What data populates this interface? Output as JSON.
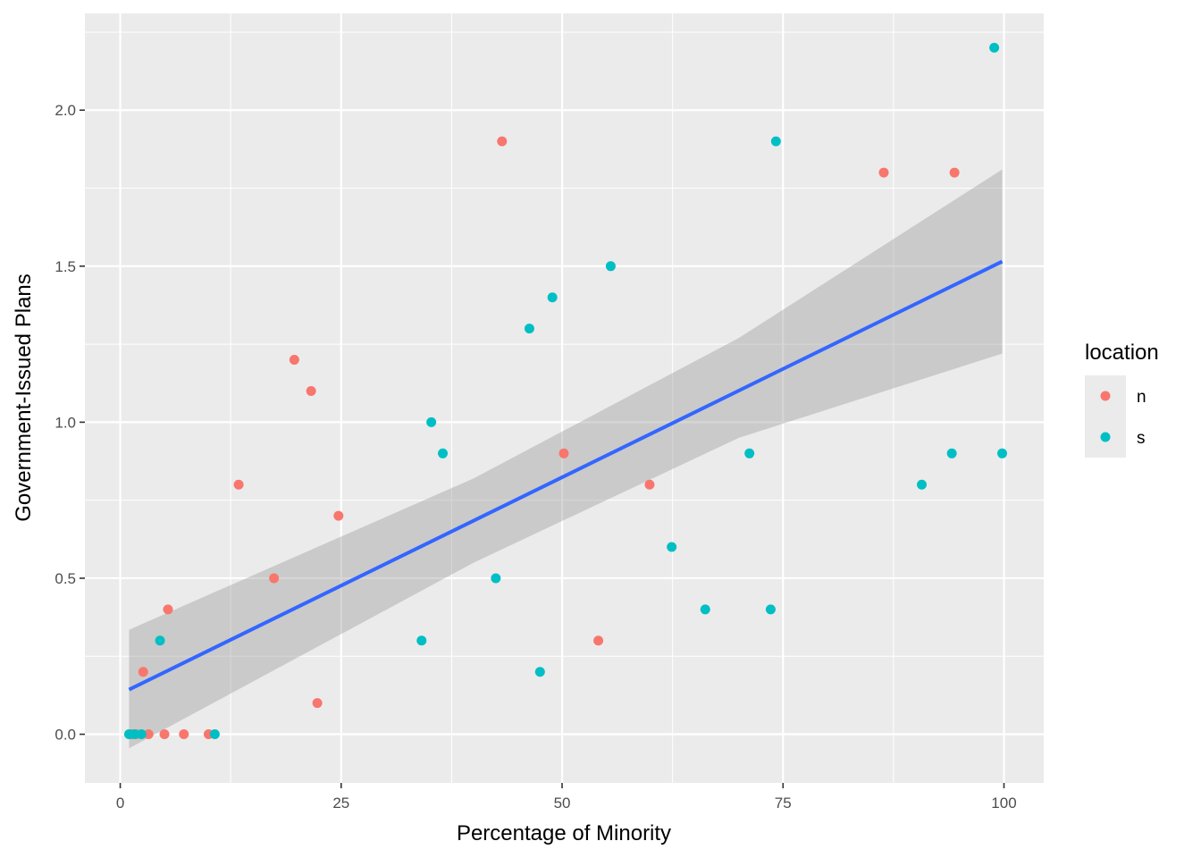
{
  "chart_data": {
    "type": "scatter",
    "xlabel": "Percentage of Minority",
    "ylabel": "Government-Issued Plans",
    "xlim": [
      -4,
      104.5
    ],
    "ylim": [
      -0.156,
      2.31
    ],
    "x_ticks": [
      0,
      25,
      50,
      75,
      100
    ],
    "x_tick_labels": [
      "0",
      "25",
      "50",
      "75",
      "100"
    ],
    "y_ticks": [
      0.0,
      0.5,
      1.0,
      1.5,
      2.0
    ],
    "y_tick_labels": [
      "0.0",
      "0.5",
      "1.0",
      "1.5",
      "2.0"
    ],
    "grid": true,
    "panel_background": "#ebebeb",
    "legend": {
      "title": "location",
      "position": "right",
      "entries": [
        {
          "label": "n",
          "color": "#F8766D"
        },
        {
          "label": "s",
          "color": "#00BFC4"
        }
      ]
    },
    "series": [
      {
        "name": "n",
        "color": "#F8766D",
        "points": [
          [
            1.2,
            0.0
          ],
          [
            1.8,
            0.0
          ],
          [
            3.2,
            0.0
          ],
          [
            5.0,
            0.0
          ],
          [
            7.2,
            0.0
          ],
          [
            10.0,
            0.0
          ],
          [
            2.6,
            0.2
          ],
          [
            5.4,
            0.4
          ],
          [
            13.4,
            0.8
          ],
          [
            17.4,
            0.5
          ],
          [
            19.7,
            1.2
          ],
          [
            21.6,
            1.1
          ],
          [
            22.3,
            0.1
          ],
          [
            24.7,
            0.7
          ],
          [
            43.2,
            1.9
          ],
          [
            50.2,
            0.9
          ],
          [
            54.1,
            0.3
          ],
          [
            59.9,
            0.8
          ],
          [
            86.4,
            1.8
          ],
          [
            94.4,
            1.8
          ]
        ]
      },
      {
        "name": "s",
        "color": "#00BFC4",
        "points": [
          [
            1.0,
            0.0
          ],
          [
            1.6,
            0.0
          ],
          [
            2.4,
            0.0
          ],
          [
            10.7,
            0.0
          ],
          [
            4.5,
            0.3
          ],
          [
            34.1,
            0.3
          ],
          [
            35.2,
            1.0
          ],
          [
            36.5,
            0.9
          ],
          [
            42.5,
            0.5
          ],
          [
            46.3,
            1.3
          ],
          [
            47.5,
            0.2
          ],
          [
            48.9,
            1.4
          ],
          [
            55.5,
            1.5
          ],
          [
            62.4,
            0.6
          ],
          [
            66.2,
            0.4
          ],
          [
            71.2,
            0.9
          ],
          [
            73.6,
            0.4
          ],
          [
            74.2,
            1.9
          ],
          [
            90.7,
            0.8
          ],
          [
            94.1,
            0.9
          ],
          [
            98.9,
            2.2
          ],
          [
            99.8,
            0.9
          ]
        ]
      }
    ],
    "smooth": {
      "method": "lm",
      "color": "#3366FF",
      "band_color": "#999999",
      "line": [
        [
          1.0,
          0.143
        ],
        [
          99.8,
          1.515
        ]
      ],
      "band_upper": [
        [
          1.0,
          0.335
        ],
        [
          40.0,
          0.82
        ],
        [
          70.0,
          1.27
        ],
        [
          99.8,
          1.81
        ]
      ],
      "band_lower": [
        [
          1.0,
          -0.045
        ],
        [
          40.0,
          0.55
        ],
        [
          70.0,
          0.95
        ],
        [
          99.8,
          1.22
        ]
      ]
    }
  }
}
